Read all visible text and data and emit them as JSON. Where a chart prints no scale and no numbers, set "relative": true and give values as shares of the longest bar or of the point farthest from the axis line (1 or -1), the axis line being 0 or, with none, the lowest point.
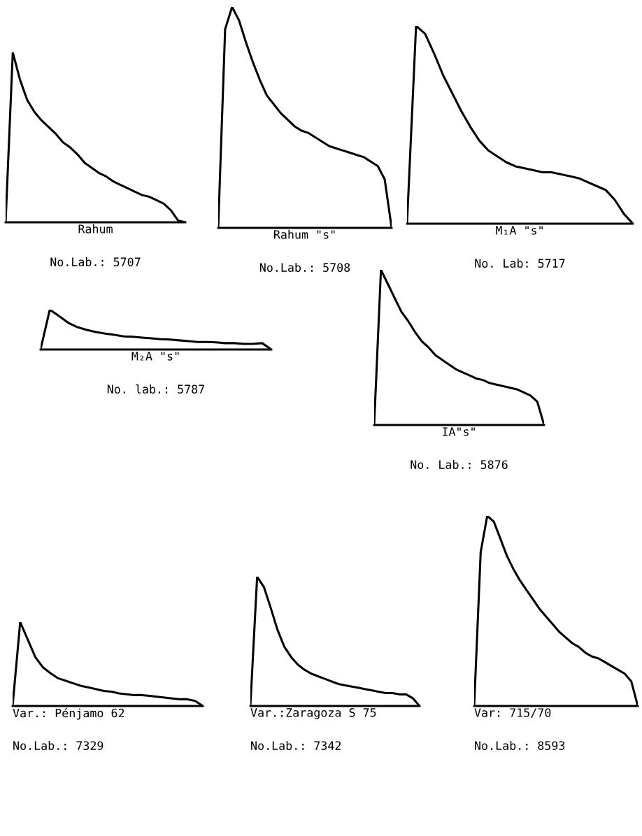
{
  "chart_data": [
    {
      "type": "line",
      "relative": true,
      "xlabel": "Rahum",
      "annotations": [
        "No.Lab.: 5707"
      ],
      "categories": [
        null,
        null,
        null,
        null,
        null,
        null,
        null,
        null,
        null,
        null,
        null,
        null,
        null,
        null,
        null,
        null,
        null,
        null,
        null,
        null,
        null,
        null,
        null,
        null,
        null,
        null
      ],
      "series": [
        {
          "color": "#000000",
          "values": [
            0,
            1,
            0.84,
            0.72,
            0.65,
            0.6,
            0.56,
            0.52,
            0.47,
            0.44,
            0.4,
            0.35,
            0.32,
            0.29,
            0.27,
            0.24,
            0.22,
            0.2,
            0.18,
            0.16,
            0.15,
            0.13,
            0.11,
            0.07,
            0.01,
            0
          ]
        }
      ]
    },
    {
      "type": "line",
      "relative": true,
      "xlabel": "Rahum \"s\"",
      "annotations": [
        "No.Lab.: 5708"
      ],
      "categories": [
        null,
        null,
        null,
        null,
        null,
        null,
        null,
        null,
        null,
        null,
        null,
        null,
        null,
        null,
        null,
        null,
        null,
        null,
        null,
        null,
        null,
        null,
        null,
        null,
        null,
        null
      ],
      "series": [
        {
          "color": "#000000",
          "values": [
            0,
            0.9,
            1,
            0.94,
            0.84,
            0.75,
            0.67,
            0.6,
            0.56,
            0.52,
            0.49,
            0.46,
            0.44,
            0.43,
            0.41,
            0.39,
            0.37,
            0.36,
            0.35,
            0.34,
            0.33,
            0.32,
            0.3,
            0.28,
            0.22,
            0
          ]
        }
      ]
    },
    {
      "type": "line",
      "relative": true,
      "xlabel": "M₁A \"s\"",
      "annotations": [
        "No. Lab: 5717"
      ],
      "categories": [
        null,
        null,
        null,
        null,
        null,
        null,
        null,
        null,
        null,
        null,
        null,
        null,
        null,
        null,
        null,
        null,
        null,
        null,
        null,
        null,
        null,
        null,
        null,
        null,
        null,
        null
      ],
      "series": [
        {
          "color": "#000000",
          "values": [
            0,
            1,
            0.96,
            0.86,
            0.75,
            0.66,
            0.57,
            0.49,
            0.42,
            0.37,
            0.34,
            0.31,
            0.29,
            0.28,
            0.27,
            0.26,
            0.26,
            0.25,
            0.24,
            0.23,
            0.21,
            0.19,
            0.17,
            0.12,
            0.05,
            0
          ]
        }
      ]
    },
    {
      "type": "line",
      "relative": true,
      "xlabel": "M₂A \"s\"",
      "annotations": [
        "No. lab.: 5787"
      ],
      "categories": [
        null,
        null,
        null,
        null,
        null,
        null,
        null,
        null,
        null,
        null,
        null,
        null,
        null,
        null,
        null,
        null,
        null,
        null,
        null,
        null,
        null,
        null,
        null,
        null,
        null,
        null
      ],
      "series": [
        {
          "color": "#000000",
          "values": [
            0,
            1,
            0.84,
            0.67,
            0.56,
            0.49,
            0.44,
            0.4,
            0.37,
            0.33,
            0.32,
            0.3,
            0.28,
            0.26,
            0.25,
            0.23,
            0.21,
            0.19,
            0.19,
            0.18,
            0.16,
            0.16,
            0.14,
            0.14,
            0.16,
            0
          ]
        }
      ]
    },
    {
      "type": "line",
      "relative": true,
      "xlabel": "IA\"s\"",
      "annotations": [
        "No. Lab.: 5876"
      ],
      "categories": [
        null,
        null,
        null,
        null,
        null,
        null,
        null,
        null,
        null,
        null,
        null,
        null,
        null,
        null,
        null,
        null,
        null,
        null,
        null,
        null,
        null,
        null,
        null,
        null,
        null,
        null
      ],
      "series": [
        {
          "color": "#000000",
          "values": [
            0,
            1,
            0.91,
            0.82,
            0.73,
            0.67,
            0.6,
            0.54,
            0.5,
            0.45,
            0.42,
            0.39,
            0.36,
            0.34,
            0.32,
            0.3,
            0.29,
            0.27,
            0.26,
            0.25,
            0.24,
            0.23,
            0.21,
            0.19,
            0.15,
            0
          ]
        }
      ]
    },
    {
      "type": "line",
      "relative": true,
      "xlabel": "Var.: Pénjamo 62",
      "annotations": [
        "No.Lab.: 7329"
      ],
      "categories": [
        null,
        null,
        null,
        null,
        null,
        null,
        null,
        null,
        null,
        null,
        null,
        null,
        null,
        null,
        null,
        null,
        null,
        null,
        null,
        null,
        null,
        null,
        null,
        null,
        null,
        null
      ],
      "series": [
        {
          "color": "#000000",
          "values": [
            0,
            1,
            0.79,
            0.58,
            0.46,
            0.39,
            0.33,
            0.3,
            0.27,
            0.24,
            0.22,
            0.2,
            0.18,
            0.17,
            0.15,
            0.14,
            0.13,
            0.13,
            0.12,
            0.11,
            0.1,
            0.09,
            0.08,
            0.08,
            0.06,
            0
          ]
        }
      ]
    },
    {
      "type": "line",
      "relative": true,
      "xlabel": "Var.:Zaragoza S 75",
      "annotations": [
        "No.Lab.: 7342"
      ],
      "categories": [
        null,
        null,
        null,
        null,
        null,
        null,
        null,
        null,
        null,
        null,
        null,
        null,
        null,
        null,
        null,
        null,
        null,
        null,
        null,
        null,
        null,
        null,
        null,
        null,
        null,
        null
      ],
      "series": [
        {
          "color": "#000000",
          "values": [
            0,
            1,
            0.92,
            0.76,
            0.59,
            0.46,
            0.38,
            0.32,
            0.28,
            0.25,
            0.23,
            0.21,
            0.19,
            0.17,
            0.16,
            0.15,
            0.14,
            0.13,
            0.12,
            0.11,
            0.1,
            0.1,
            0.09,
            0.09,
            0.06,
            0
          ]
        }
      ]
    },
    {
      "type": "line",
      "relative": true,
      "xlabel": "Var: 715/70",
      "annotations": [
        "No.Lab.: 8593"
      ],
      "categories": [
        null,
        null,
        null,
        null,
        null,
        null,
        null,
        null,
        null,
        null,
        null,
        null,
        null,
        null,
        null,
        null,
        null,
        null,
        null,
        null,
        null,
        null,
        null,
        null,
        null,
        null
      ],
      "series": [
        {
          "color": "#000000",
          "values": [
            0,
            0.81,
            1,
            0.97,
            0.88,
            0.79,
            0.72,
            0.66,
            0.61,
            0.56,
            0.51,
            0.47,
            0.43,
            0.39,
            0.36,
            0.33,
            0.31,
            0.28,
            0.26,
            0.25,
            0.23,
            0.21,
            0.19,
            0.17,
            0.13,
            0
          ]
        }
      ]
    }
  ]
}
